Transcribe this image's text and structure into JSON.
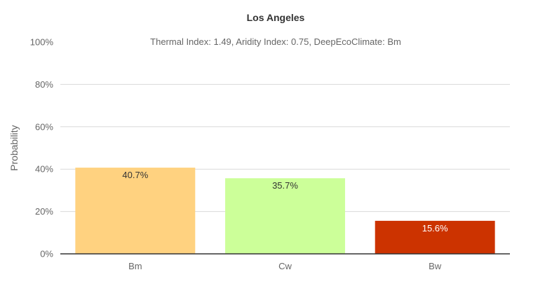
{
  "chart_data": {
    "type": "bar",
    "title": "Los Angeles",
    "subtitle": "Thermal Index: 1.49, Aridity Index: 0.75, DeepEcoClimate: Bm",
    "xlabel": "",
    "ylabel": "Probability",
    "ylim": [
      0,
      100
    ],
    "yticks": [
      "0%",
      "20%",
      "40%",
      "60%",
      "80%",
      "100%"
    ],
    "ytick_values": [
      0,
      20,
      40,
      60,
      80,
      100
    ],
    "categories": [
      "Bm",
      "Cw",
      "Bw"
    ],
    "values": [
      40.7,
      35.7,
      15.6
    ],
    "data_labels": [
      "40.7%",
      "35.7%",
      "15.6%"
    ],
    "bar_colors": [
      "#FFD280",
      "#CCFF99",
      "#CC3300"
    ],
    "label_colors": [
      "#333333",
      "#333333",
      "#ffffff"
    ],
    "grid": true,
    "legend": "none"
  }
}
